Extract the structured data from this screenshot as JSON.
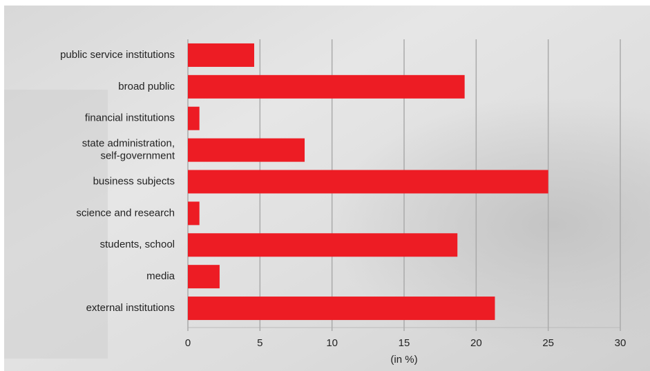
{
  "chart_data": {
    "type": "hbar",
    "categories": [
      "public service institutions",
      "broad public",
      "financial institutions",
      "state administration,\nself-government",
      "business subjects",
      "science and research",
      "students, school",
      "media",
      "external institutions"
    ],
    "values": [
      4.6,
      19.2,
      0.8,
      8.1,
      25,
      0.8,
      18.7,
      2.2,
      21.3
    ],
    "color": "#ed1c24",
    "xlabel": "(in %)",
    "xlim": [
      0,
      30
    ],
    "xticks": [
      0,
      5,
      10,
      15,
      20,
      25,
      30
    ],
    "grid": true
  }
}
